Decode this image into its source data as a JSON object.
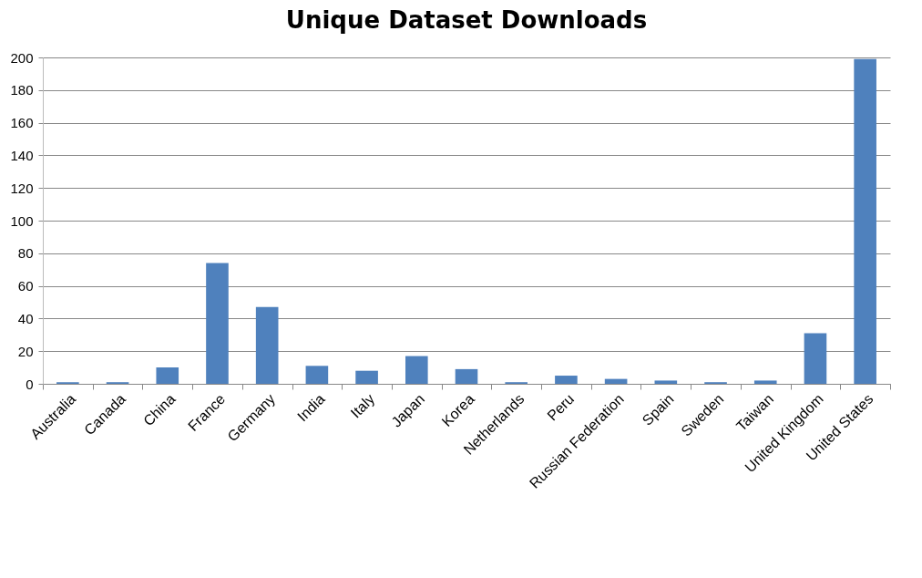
{
  "chart_data": {
    "type": "bar",
    "title": "Unique Dataset Downloads",
    "categories": [
      "Australia",
      "Canada",
      "China",
      "France",
      "Germany",
      "India",
      "Italy",
      "Japan",
      "Korea",
      "Netherlands",
      "Peru",
      "Russian Federation",
      "Spain",
      "Sweden",
      "Taiwan",
      "United Kingdom",
      "United States"
    ],
    "values": [
      1,
      1,
      10,
      74,
      47,
      11,
      8,
      17,
      9,
      1,
      5,
      3,
      2,
      1,
      2,
      31,
      199
    ],
    "color": "#4f81bd",
    "ylim": [
      0,
      200
    ],
    "yticks": [
      0,
      20,
      40,
      60,
      80,
      100,
      120,
      140,
      160,
      180,
      200
    ],
    "grid": "y"
  }
}
